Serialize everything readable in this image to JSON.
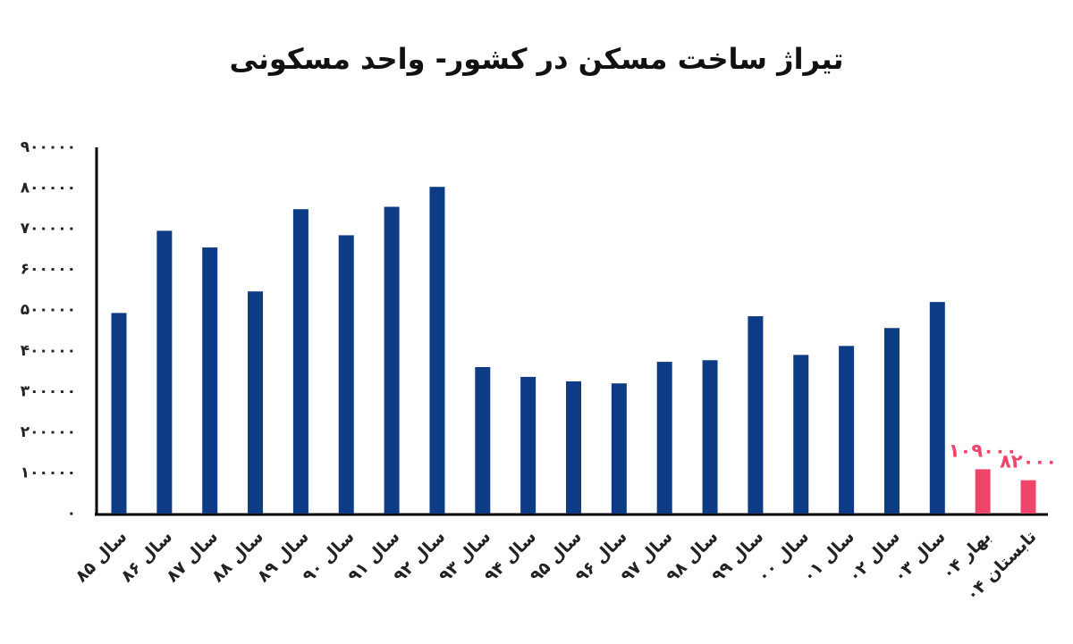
{
  "chart_data": {
    "type": "bar",
    "title": "تیراژ ساخت مسکن در کشور- واحد مسکونی",
    "categories": [
      "سال ۸۵",
      "سال ۸۶",
      "سال ۸۷",
      "سال ۸۸",
      "سال ۸۹",
      "سال ۹۰",
      "سال ۹۱",
      "سال ۹۲",
      "سال ۹۳",
      "سال ۹۴",
      "سال ۹۵",
      "سال ۹۶",
      "سال ۹۷",
      "سال ۹۸",
      "سال ۹۹",
      "سال ۰۰",
      "سال ۰۱",
      "سال ۰۲",
      "سال ۰۳",
      "بهار ۰۴",
      "تابستان ۰۴"
    ],
    "values": [
      493000,
      695000,
      654000,
      546000,
      748000,
      684000,
      754000,
      803000,
      360000,
      336000,
      325000,
      320000,
      373000,
      377000,
      485000,
      390000,
      412000,
      456000,
      520000,
      109000,
      82000
    ],
    "value_labels": [
      null,
      null,
      null,
      null,
      null,
      null,
      null,
      null,
      null,
      null,
      null,
      null,
      null,
      null,
      null,
      null,
      null,
      null,
      null,
      "۱۰۹۰۰۰",
      "۸۲۰۰۰"
    ],
    "colors": [
      "#0d3b85",
      "#0d3b85",
      "#0d3b85",
      "#0d3b85",
      "#0d3b85",
      "#0d3b85",
      "#0d3b85",
      "#0d3b85",
      "#0d3b85",
      "#0d3b85",
      "#0d3b85",
      "#0d3b85",
      "#0d3b85",
      "#0d3b85",
      "#0d3b85",
      "#0d3b85",
      "#0d3b85",
      "#0d3b85",
      "#0d3b85",
      "#f0456a",
      "#f0456a"
    ],
    "ylim": [
      0,
      900000
    ],
    "yticks": [
      {
        "value": 0,
        "label": "۰"
      },
      {
        "value": 100000,
        "label": "۱۰۰۰۰۰"
      },
      {
        "value": 200000,
        "label": "۲۰۰۰۰۰"
      },
      {
        "value": 300000,
        "label": "۳۰۰۰۰۰"
      },
      {
        "value": 400000,
        "label": "۴۰۰۰۰۰"
      },
      {
        "value": 500000,
        "label": "۵۰۰۰۰۰"
      },
      {
        "value": 600000,
        "label": "۶۰۰۰۰۰"
      },
      {
        "value": 700000,
        "label": "۷۰۰۰۰۰"
      },
      {
        "value": 800000,
        "label": "۸۰۰۰۰۰"
      },
      {
        "value": 900000,
        "label": "۹۰۰۰۰۰"
      }
    ],
    "grid": false
  }
}
